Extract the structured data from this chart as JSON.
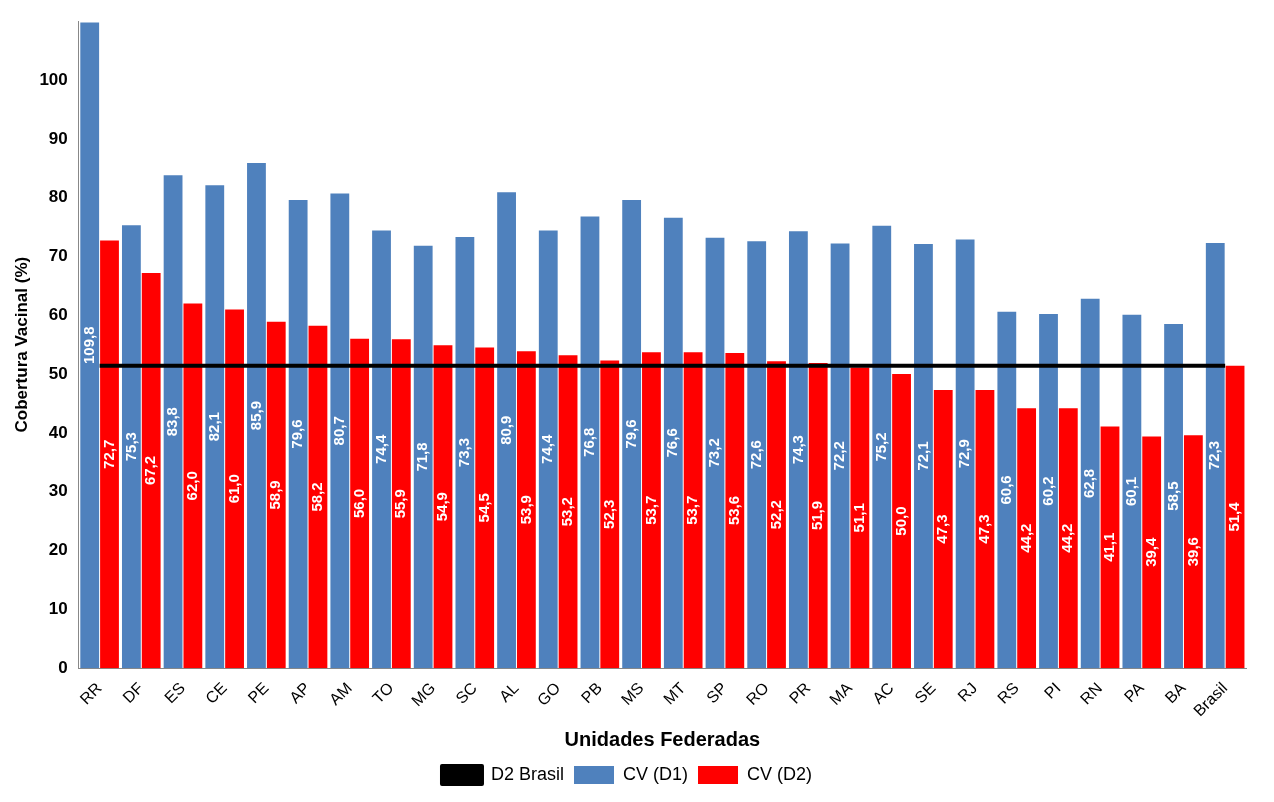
{
  "chart_data": {
    "type": "bar",
    "xlabel": "Unidades Federadas",
    "ylabel": "Cobertura Vacinal (%)",
    "categories": [
      "RR",
      "DF",
      "ES",
      "CE",
      "PE",
      "AP",
      "AM",
      "TO",
      "MG",
      "SC",
      "AL",
      "GO",
      "PB",
      "MS",
      "MT",
      "SP",
      "RO",
      "PR",
      "MA",
      "AC",
      "SE",
      "RJ",
      "RS",
      "PI",
      "RN",
      "PA",
      "BA",
      "Brasil"
    ],
    "series": [
      {
        "name": "CV (D1)",
        "color": "#4f81bd",
        "values": [
          109.8,
          75.3,
          83.8,
          82.1,
          85.9,
          79.6,
          80.7,
          74.4,
          71.8,
          73.3,
          80.9,
          74.4,
          76.8,
          79.6,
          76.6,
          73.2,
          72.6,
          74.3,
          72.2,
          75.2,
          72.1,
          72.9,
          60.6,
          60.2,
          62.8,
          60.1,
          58.5,
          72.3
        ],
        "value_labels": [
          "109,8",
          "75,3",
          "83,8",
          "82,1",
          "85,9",
          "79,6",
          "80,7",
          "74,4",
          "71,8",
          "73,3",
          "80,9",
          "74,4",
          "76,8",
          "79,6",
          "76,6",
          "73,2",
          "72,6",
          "74,3",
          "72,2",
          "75,2",
          "72,1",
          "72,9",
          "60,6",
          "60,2",
          "62,8",
          "60,1",
          "58,5",
          "72,3"
        ]
      },
      {
        "name": "CV (D2)",
        "color": "#ff0000",
        "values": [
          72.7,
          67.2,
          62.0,
          61.0,
          58.9,
          58.2,
          56.0,
          55.9,
          54.9,
          54.5,
          53.9,
          53.2,
          52.3,
          53.7,
          53.7,
          53.6,
          52.2,
          51.9,
          51.1,
          50.0,
          47.3,
          47.3,
          44.2,
          44.2,
          41.1,
          39.4,
          39.6,
          51.4
        ],
        "value_labels": [
          "72,7",
          "67,2",
          "62,0",
          "61,0",
          "58,9",
          "58,2",
          "56,0",
          "55,9",
          "54,9",
          "54,5",
          "53,9",
          "53,2",
          "52,3",
          "53,7",
          "53,7",
          "53,6",
          "52,2",
          "51,9",
          "51,1",
          "50,0",
          "47,3",
          "47,3",
          "44,2",
          "44,2",
          "41,1",
          "39,4",
          "39,6",
          "51,4"
        ]
      },
      {
        "name": "D2 Brasil",
        "type": "line",
        "color": "#000000",
        "values": [
          51.4,
          51.4,
          51.4,
          51.4,
          51.4,
          51.4,
          51.4,
          51.4,
          51.4,
          51.4,
          51.4,
          51.4,
          51.4,
          51.4,
          51.4,
          51.4,
          51.4,
          51.4,
          51.4,
          51.4,
          51.4,
          51.4,
          51.4,
          51.4,
          51.4,
          51.4,
          51.4,
          51.4
        ]
      }
    ],
    "ylim": [
      0,
      110
    ],
    "yticks": [
      0,
      10,
      20,
      30,
      40,
      50,
      60,
      70,
      80,
      90,
      100
    ],
    "grid": false,
    "legend": "bottom",
    "marker": "none",
    "line_style": "solid"
  }
}
